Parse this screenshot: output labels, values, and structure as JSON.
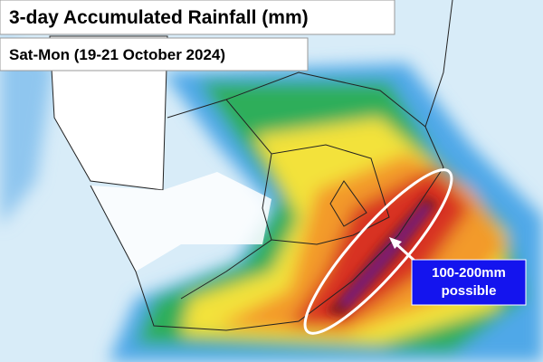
{
  "map": {
    "title": "3-day Accumulated Rainfall (mm)",
    "subtitle": "Sat-Mon (19-21 October 2024)",
    "annotation": {
      "lines": [
        "100-200mm",
        "possible"
      ]
    }
  }
}
